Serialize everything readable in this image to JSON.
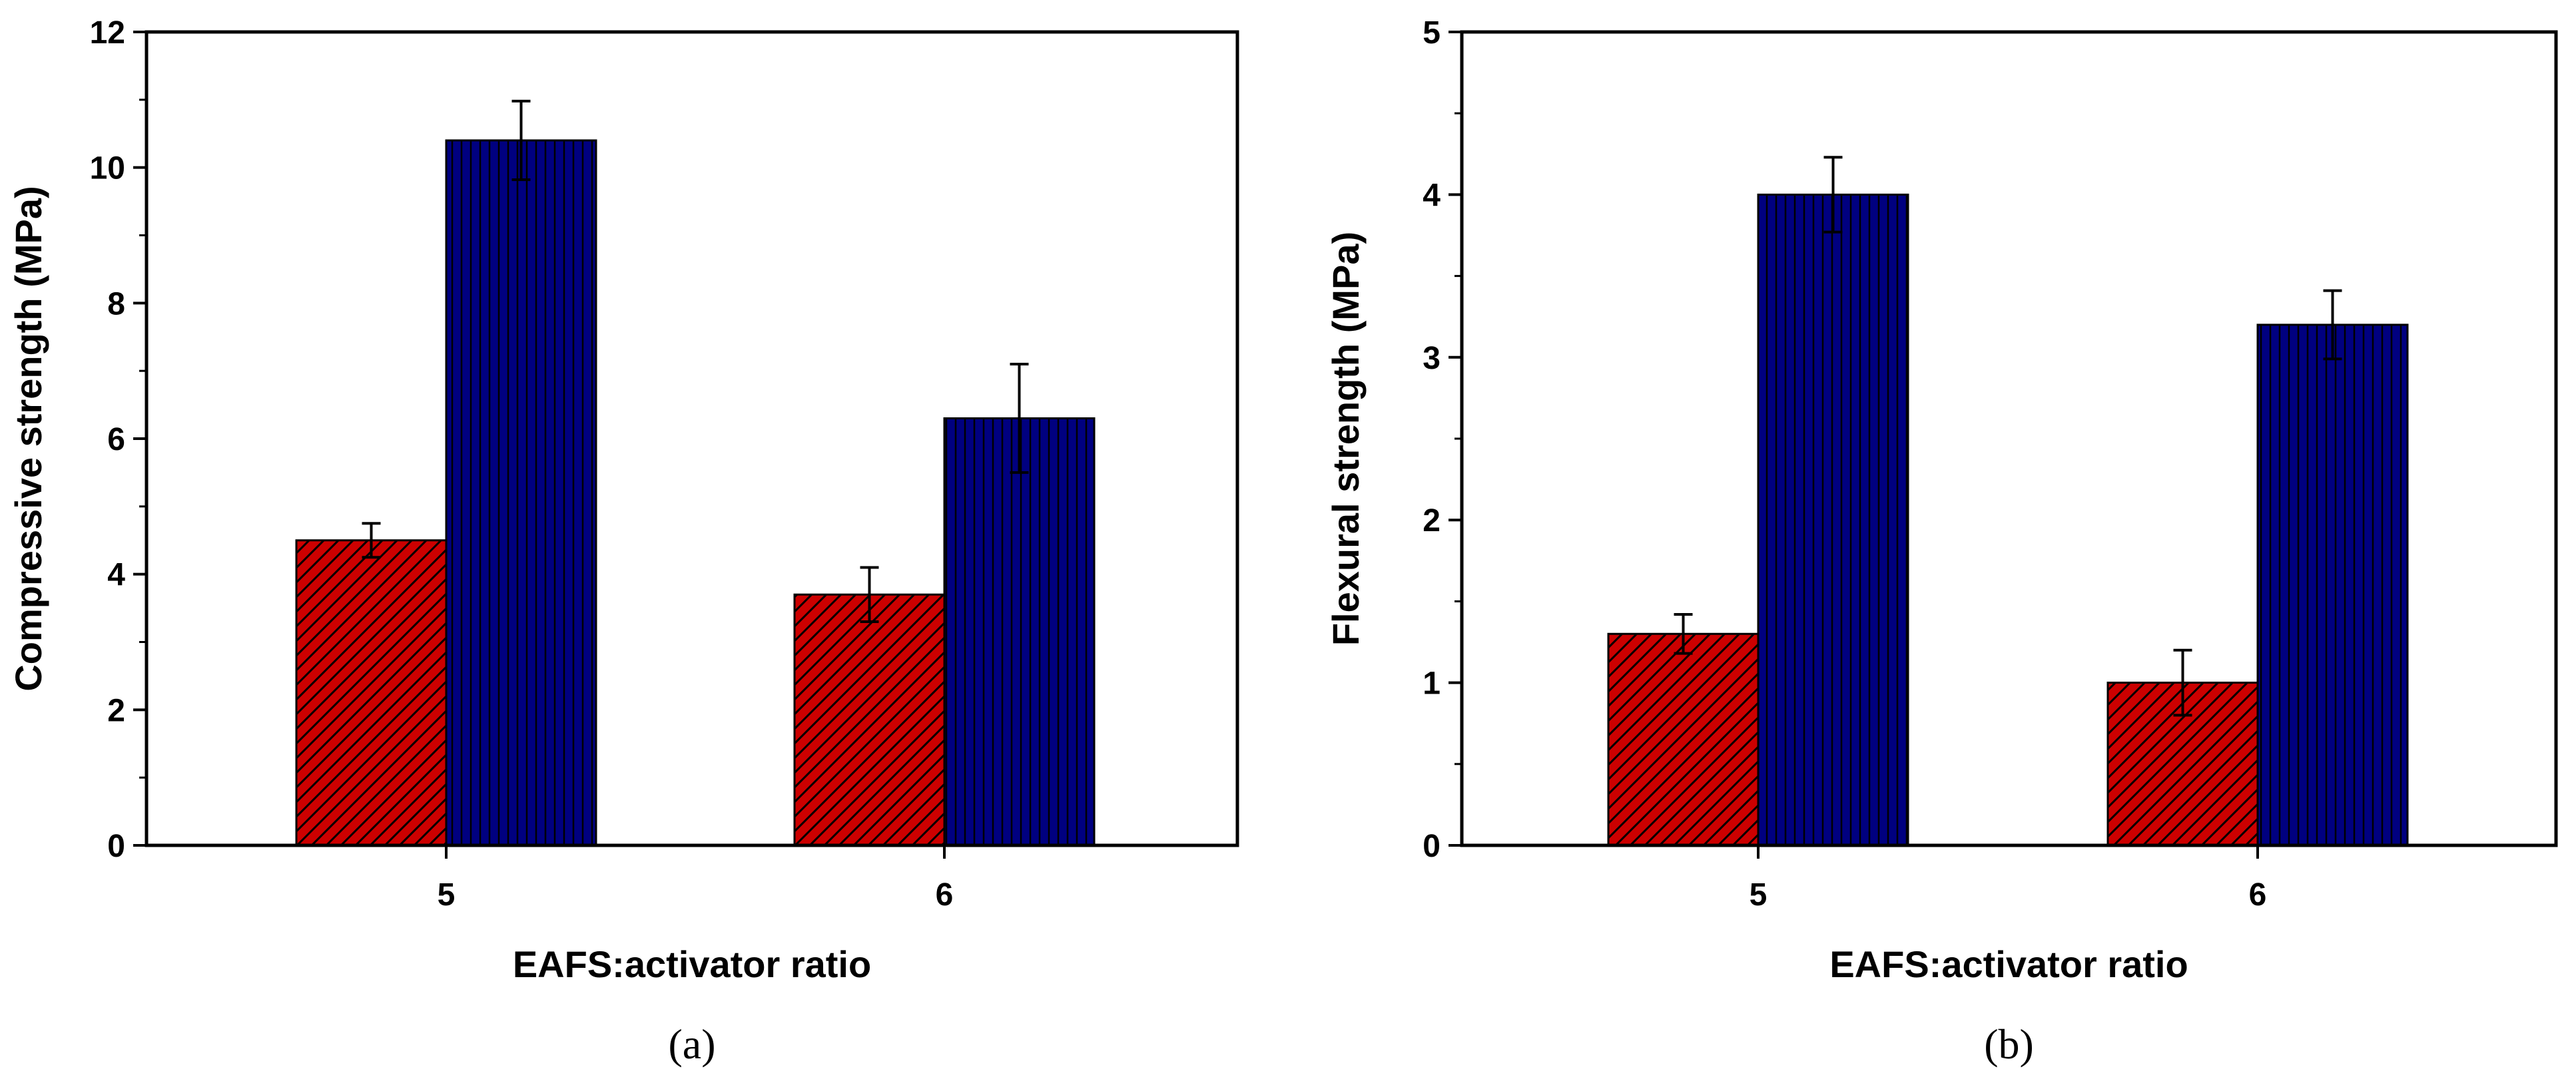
{
  "chart_data": [
    {
      "type": "bar",
      "panel_label": "(a)",
      "categories": [
        "5",
        "6"
      ],
      "xlabel": "EAFS:activator ratio",
      "ylabel": "Compressive strength (MPa)",
      "ylim": [
        0,
        12
      ],
      "yticks": [
        "0",
        "2",
        "4",
        "6",
        "8",
        "10",
        "12"
      ],
      "series": [
        {
          "name": "series-1",
          "color": "#cc0000",
          "pattern": "diagonal-hatch",
          "values": [
            4.5,
            3.7
          ],
          "errors": [
            0.25,
            0.4
          ]
        },
        {
          "name": "series-2",
          "color": "#000080",
          "pattern": "vertical-lines",
          "values": [
            10.4,
            6.3
          ],
          "errors": [
            0.58,
            0.8
          ]
        }
      ]
    },
    {
      "type": "bar",
      "panel_label": "(b)",
      "categories": [
        "5",
        "6"
      ],
      "xlabel": "EAFS:activator ratio",
      "ylabel": "Flexural strength (MPa)",
      "ylim": [
        0,
        5
      ],
      "yticks": [
        "0",
        "1",
        "2",
        "3",
        "4",
        "5"
      ],
      "series": [
        {
          "name": "series-1",
          "color": "#cc0000",
          "pattern": "diagonal-hatch",
          "values": [
            1.3,
            1.0
          ],
          "errors": [
            0.12,
            0.2
          ]
        },
        {
          "name": "series-2",
          "color": "#000080",
          "pattern": "vertical-lines",
          "values": [
            4.0,
            3.2
          ],
          "errors": [
            0.23,
            0.21
          ]
        }
      ]
    }
  ]
}
